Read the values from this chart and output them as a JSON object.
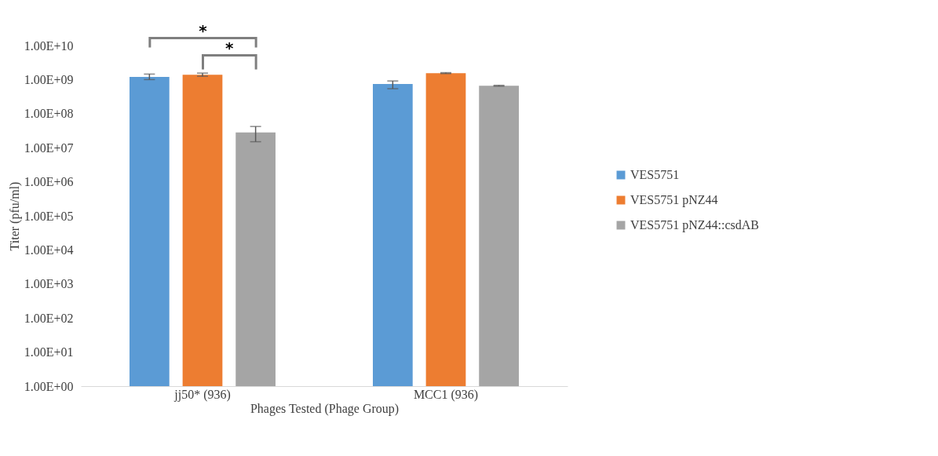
{
  "chart_data": {
    "type": "bar",
    "xlabel": "Phages Tested (Phage Group)",
    "ylabel": "Titer (pfu/ml)",
    "categories": [
      "jj50* (936)",
      "MCC1 (936)"
    ],
    "log": true,
    "ylim": [
      1,
      10000000000
    ],
    "yticks": [
      {
        "value": 1,
        "label": "1.00E+00"
      },
      {
        "value": 10,
        "label": "1.00E+01"
      },
      {
        "value": 100,
        "label": "1.00E+02"
      },
      {
        "value": 1000,
        "label": "1.00E+03"
      },
      {
        "value": 10000,
        "label": "1.00E+04"
      },
      {
        "value": 100000,
        "label": "1.00E+05"
      },
      {
        "value": 1000000,
        "label": "1.00E+06"
      },
      {
        "value": 10000000,
        "label": "1.00E+07"
      },
      {
        "value": 100000000,
        "label": "1.00E+08"
      },
      {
        "value": 1000000000,
        "label": "1.00E+09"
      },
      {
        "value": 10000000000,
        "label": "1.00E+10"
      }
    ],
    "legend": "right",
    "grid": false,
    "series": [
      {
        "name": "VES5751",
        "color": "#5b9bd5",
        "values": [
          1200000000,
          740000000
        ],
        "errors": [
          [
            1000000000,
            1450000000
          ],
          [
            540000000,
            910000000
          ]
        ]
      },
      {
        "name": "VES5751 pNZ44",
        "color": "#ed7d31",
        "values": [
          1380000000,
          1550000000
        ],
        "errors": [
          [
            1250000000,
            1550000000
          ],
          [
            1500000000,
            1600000000
          ]
        ]
      },
      {
        "name": "VES5751 pNZ44::csdAB",
        "color": "#a5a5a5",
        "values": [
          28000000,
          660000000
        ],
        "errors": [
          [
            15000000,
            42000000
          ],
          [
            640000000,
            680000000
          ]
        ]
      }
    ],
    "annotations": [
      "*",
      "*"
    ]
  }
}
